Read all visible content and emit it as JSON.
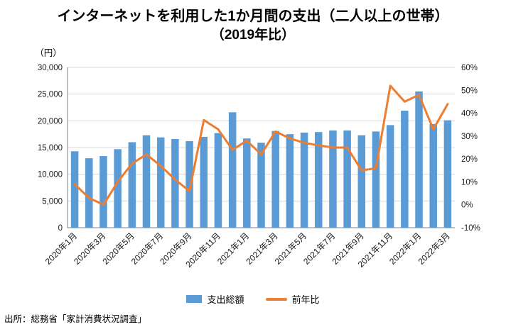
{
  "title": {
    "line1": "インターネットを利用した1か月間の支出（二人以上の世帯）",
    "line2": "（2019年比）"
  },
  "source": "出所：総務省「家計消費状況調査」",
  "legend": [
    {
      "label": "支出総額",
      "type": "bar",
      "color": "#5B9BD5"
    },
    {
      "label": "前年比",
      "type": "line",
      "color": "#ED7D31"
    }
  ],
  "chart_data": {
    "type": "bar+line",
    "title": "インターネットを利用した1か月間の支出（二人以上の世帯）（2019年比）",
    "categories": [
      "2020年1月",
      "2020年2月",
      "2020年3月",
      "2020年4月",
      "2020年5月",
      "2020年6月",
      "2020年7月",
      "2020年8月",
      "2020年9月",
      "2020年10月",
      "2020年11月",
      "2020年12月",
      "2021年1月",
      "2021年2月",
      "2021年3月",
      "2021年4月",
      "2021年5月",
      "2021年6月",
      "2021年7月",
      "2021年8月",
      "2021年9月",
      "2021年10月",
      "2021年11月",
      "2021年12月",
      "2022年1月",
      "2022年2月",
      "2022年3月"
    ],
    "x_label_every": 2,
    "series": [
      {
        "name": "支出総額",
        "type": "bar",
        "axis": "left",
        "color": "#5B9BD5",
        "values": [
          14300,
          13000,
          13400,
          14700,
          16000,
          17300,
          16900,
          16600,
          16200,
          17000,
          17700,
          21600,
          16700,
          15900,
          18100,
          17500,
          17800,
          17900,
          18200,
          18200,
          17300,
          18000,
          19200,
          21900,
          25500,
          19400,
          20100
        ]
      },
      {
        "name": "前年比",
        "type": "line",
        "axis": "right",
        "color": "#ED7D31",
        "values": [
          9,
          3,
          0,
          10,
          18,
          22,
          17,
          11,
          6,
          37,
          33,
          24,
          28,
          22,
          32,
          29,
          27,
          26,
          25,
          25,
          15,
          16,
          52,
          45,
          48,
          33,
          44
        ]
      }
    ],
    "left_axis": {
      "unit": "（円）",
      "min": 0,
      "max": 30000,
      "step": 5000
    },
    "right_axis": {
      "min": -10,
      "max": 60,
      "step": 10,
      "format": "percent"
    },
    "grid": true,
    "legend_position": "bottom"
  }
}
